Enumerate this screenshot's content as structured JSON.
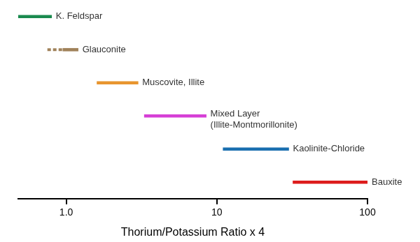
{
  "chart_data": {
    "type": "bar",
    "orientation": "horizontal",
    "x_label": "Thorium/Potassium Ratio x 4",
    "categories": [
      "K. Feldspar",
      "Glauconite",
      "Muscovite, Illite",
      "Mixed Layer (Illite-Montmorillonite)",
      "Kaolinite-Chloride",
      "Bauxite"
    ],
    "series": [
      {
        "line_style": "solid",
        "values": [
          [
            0.48,
            0.8
          ],
          [
            0.95,
            1.2
          ],
          [
            1.6,
            3.0
          ],
          [
            3.3,
            8.5
          ],
          [
            11,
            30
          ],
          [
            32,
            100
          ]
        ],
        "colors": [
          "#1a8a4f",
          "#a0825a",
          "#e8952e",
          "#d63fd6",
          "#1a6fb0",
          "#dd1c1c"
        ]
      },
      {
        "line_style": "dashed",
        "values": [
          null,
          [
            0.75,
            0.95
          ],
          null,
          null,
          null,
          null
        ],
        "colors": [
          null,
          "#a0825a",
          null,
          null,
          null,
          null
        ]
      }
    ],
    "log": "x",
    "xlim": [
      0.48,
      100
    ],
    "xticks": [
      {
        "value": 1,
        "label": "1.0"
      },
      10,
      100
    ],
    "grid": false,
    "tick_labels": "x"
  }
}
